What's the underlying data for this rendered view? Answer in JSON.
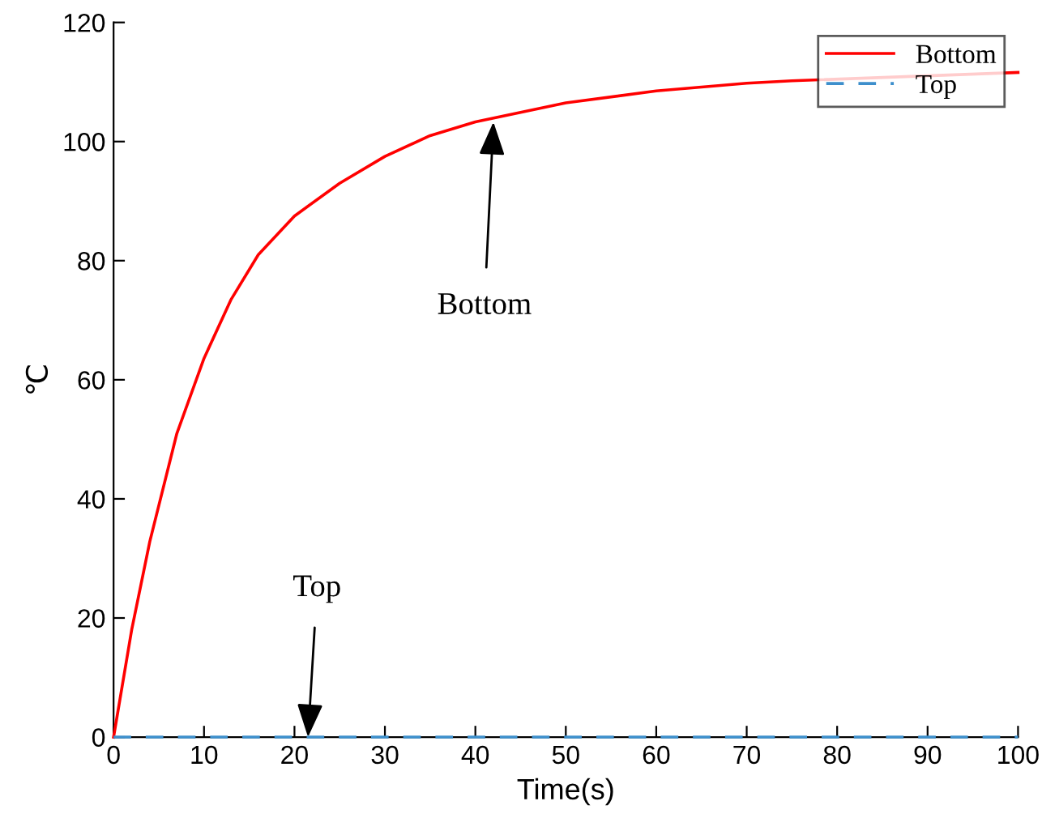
{
  "chart_data": {
    "type": "line",
    "xlabel": "Time(s)",
    "ylabel": "℃",
    "x": [
      0,
      2,
      4,
      7,
      10,
      13,
      16,
      20,
      25,
      30,
      35,
      40,
      50,
      60,
      70,
      75,
      100
    ],
    "series": [
      {
        "name": "Bottom",
        "color": "#ff0000",
        "line_style": "solid",
        "values": [
          0,
          18,
          32.8,
          51,
          63.6,
          73.5,
          81,
          87.5,
          93,
          97.5,
          101,
          103.3,
          106.5,
          108.5,
          109.8,
          110.2,
          111.6
        ]
      },
      {
        "name": "Top",
        "color": "#3d8fcc",
        "line_style": "dashed",
        "values": [
          0,
          0,
          0,
          0,
          0,
          0,
          0,
          0,
          0,
          0,
          0,
          0,
          0,
          0,
          0,
          0,
          0
        ]
      }
    ],
    "xlim": [
      0,
      100
    ],
    "xticks": [
      0,
      10,
      20,
      30,
      40,
      50,
      60,
      70,
      80,
      90,
      100
    ],
    "ylim": [
      0,
      120
    ],
    "yticks": [
      0,
      20,
      40,
      60,
      80,
      100,
      120
    ],
    "grid": false,
    "legend": "top right",
    "marker": "none",
    "annotations": [
      {
        "text": "Bottom",
        "x": 42,
        "y": 103.3
      },
      {
        "text": "Top",
        "x": 21.5,
        "y": 0
      }
    ]
  }
}
